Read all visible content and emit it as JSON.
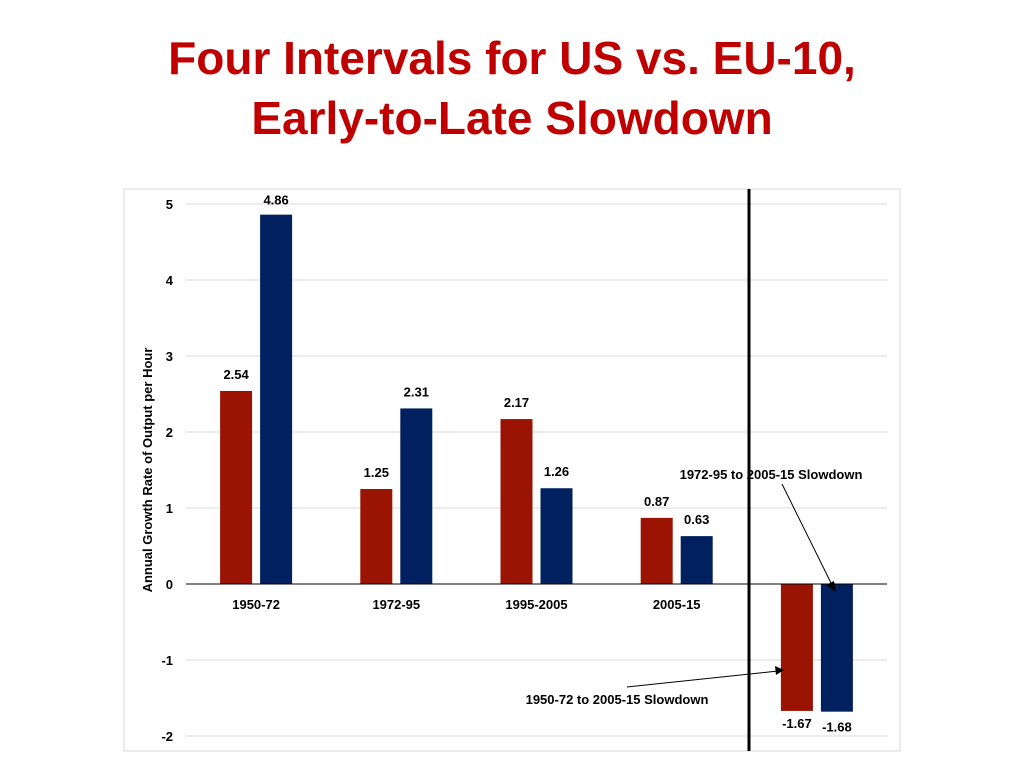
{
  "title_lines": [
    "Four Intervals for US vs. EU-10,",
    "Early-to-Late Slowdown"
  ],
  "chart_data": {
    "type": "bar",
    "categories": [
      "1950-72",
      "1972-95",
      "1995-2005",
      "2005-15",
      ""
    ],
    "series": [
      {
        "color": "#9b1403",
        "values": [
          2.54,
          1.25,
          2.17,
          0.87,
          -1.67
        ]
      },
      {
        "color": "#002060",
        "values": [
          4.86,
          2.31,
          1.26,
          0.63,
          -1.68
        ]
      }
    ],
    "data_labels": [
      [
        "2.54",
        "1.25",
        "2.17",
        "0.87",
        "-1.67"
      ],
      [
        "4.86",
        "2.31",
        "1.26",
        "0.63",
        "-1.68"
      ]
    ],
    "ylabel": "Annual Growth Rate of Output per Hour",
    "xlabel": "",
    "ylim": [
      -2,
      5
    ],
    "yticks": [
      5,
      4,
      3,
      2,
      1,
      0,
      -1,
      -2
    ],
    "grid": true,
    "annotations": [
      {
        "text": "1972-95 to 2005-15 Slowdown",
        "points_to": "EU-10 bar in last group"
      },
      {
        "text": "1950-72 to 2005-15 Slowdown",
        "points_to": "US bar in last group"
      }
    ],
    "divider_line": "vertical black line between 2005-15 group and slowdown group"
  }
}
